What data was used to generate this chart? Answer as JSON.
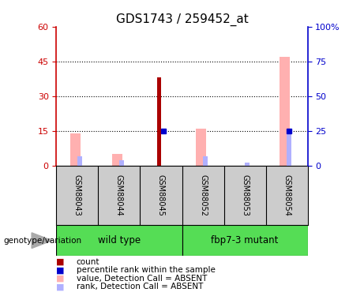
{
  "title": "GDS1743 / 259452_at",
  "samples": [
    "GSM88043",
    "GSM88044",
    "GSM88045",
    "GSM88052",
    "GSM88053",
    "GSM88054"
  ],
  "count_values": [
    0,
    0,
    38,
    0,
    0,
    0
  ],
  "percentile_rank_values": [
    0,
    0,
    25,
    0,
    0,
    25
  ],
  "value_absent": [
    14,
    5,
    0,
    16,
    0,
    47
  ],
  "rank_absent": [
    7,
    4,
    0,
    7,
    2,
    25
  ],
  "ylim_left": [
    0,
    60
  ],
  "ylim_right": [
    0,
    100
  ],
  "yticks_left": [
    0,
    15,
    30,
    45,
    60
  ],
  "yticks_right": [
    0,
    25,
    50,
    75,
    100
  ],
  "left_axis_color": "#cc0000",
  "right_axis_color": "#0000cc",
  "count_color": "#aa0000",
  "percentile_color": "#0000cc",
  "value_absent_color": "#ffb0b0",
  "rank_absent_color": "#b0b0ff",
  "bg_color": "#ffffff",
  "plot_bg": "#ffffff",
  "sample_label_bg": "#cccccc",
  "group_label_bg_wt": "#55dd55",
  "group_label_bg_mut": "#55dd55",
  "wt_label": "wild type",
  "mut_label": "fbp7-3 mutant",
  "genotype_label": "genotype/variation"
}
